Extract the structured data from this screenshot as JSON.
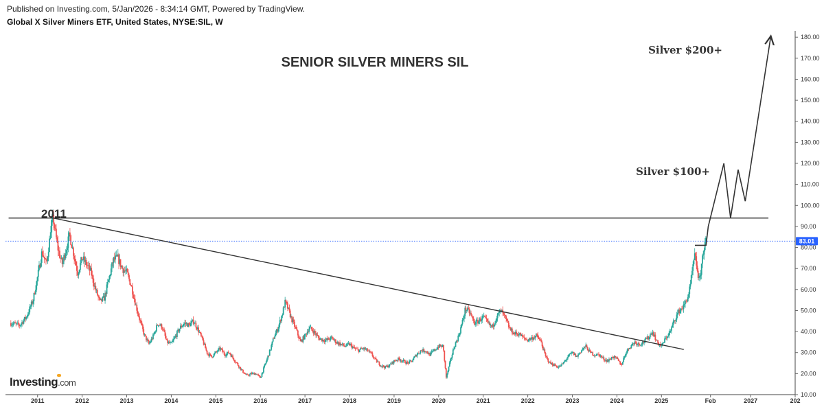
{
  "header": {
    "published": "Published on Investing.com, 5/Jan/2026 - 8:34:14 GMT, Powered by TradingView.",
    "instrument": "Global X Silver Miners ETF, United States, NYSE:SIL, W"
  },
  "logo": {
    "brand": "Investing",
    "suffix": ".com"
  },
  "chart_data": {
    "type": "line",
    "title": "SENIOR SILVER MINERS SIL",
    "style": "weekly candlestick",
    "x_ticks": [
      "2011",
      "2012",
      "2013",
      "2014",
      "2015",
      "2016",
      "2017",
      "2018",
      "2019",
      "2020",
      "2021",
      "2022",
      "2023",
      "2024",
      "2025",
      "Feb",
      "2027",
      "202"
    ],
    "y_ticks": [
      "10.00",
      "20.00",
      "30.00",
      "40.00",
      "50.00",
      "60.00",
      "70.00",
      "80.00",
      "90.00",
      "100.00",
      "110.00",
      "120.00",
      "130.00",
      "140.00",
      "150.00",
      "160.00",
      "170.00",
      "180.00"
    ],
    "ylim": [
      10,
      183
    ],
    "xlim": [
      2010.28,
      2028.0
    ],
    "last_price": "83.01",
    "colors": {
      "up": "#26a69a",
      "down": "#ef5350",
      "price_line": "#2962ff",
      "annotation": "#333333"
    },
    "series": [
      {
        "values": [
          [
            2010.4,
            44
          ],
          [
            2010.6,
            43
          ],
          [
            2010.75,
            47
          ],
          [
            2010.9,
            55
          ],
          [
            2011.0,
            66
          ],
          [
            2011.1,
            78
          ],
          [
            2011.2,
            72
          ],
          [
            2011.3,
            89
          ],
          [
            2011.35,
            94
          ],
          [
            2011.45,
            80
          ],
          [
            2011.55,
            72
          ],
          [
            2011.65,
            80
          ],
          [
            2011.72,
            86
          ],
          [
            2011.8,
            78
          ],
          [
            2011.9,
            68
          ],
          [
            2012.0,
            75
          ],
          [
            2012.1,
            72
          ],
          [
            2012.2,
            68
          ],
          [
            2012.3,
            60
          ],
          [
            2012.4,
            54
          ],
          [
            2012.5,
            56
          ],
          [
            2012.6,
            65
          ],
          [
            2012.7,
            74
          ],
          [
            2012.8,
            75
          ],
          [
            2012.9,
            70
          ],
          [
            2013.0,
            68
          ],
          [
            2013.1,
            62
          ],
          [
            2013.2,
            53
          ],
          [
            2013.3,
            45
          ],
          [
            2013.4,
            38
          ],
          [
            2013.5,
            34
          ],
          [
            2013.6,
            38
          ],
          [
            2013.7,
            44
          ],
          [
            2013.8,
            42
          ],
          [
            2013.9,
            35
          ],
          [
            2014.0,
            34
          ],
          [
            2014.1,
            38
          ],
          [
            2014.2,
            42
          ],
          [
            2014.3,
            44
          ],
          [
            2014.4,
            43
          ],
          [
            2014.5,
            45
          ],
          [
            2014.6,
            41
          ],
          [
            2014.7,
            36
          ],
          [
            2014.8,
            30
          ],
          [
            2014.9,
            28
          ],
          [
            2015.0,
            30
          ],
          [
            2015.1,
            32
          ],
          [
            2015.2,
            29
          ],
          [
            2015.3,
            30
          ],
          [
            2015.4,
            27
          ],
          [
            2015.5,
            24
          ],
          [
            2015.6,
            21
          ],
          [
            2015.7,
            19
          ],
          [
            2015.8,
            20
          ],
          [
            2015.9,
            20
          ],
          [
            2016.0,
            18
          ],
          [
            2016.1,
            24
          ],
          [
            2016.2,
            30
          ],
          [
            2016.3,
            37
          ],
          [
            2016.4,
            42
          ],
          [
            2016.5,
            49
          ],
          [
            2016.55,
            54
          ],
          [
            2016.6,
            52
          ],
          [
            2016.7,
            46
          ],
          [
            2016.8,
            41
          ],
          [
            2016.9,
            35
          ],
          [
            2017.0,
            38
          ],
          [
            2017.1,
            42
          ],
          [
            2017.2,
            40
          ],
          [
            2017.3,
            37
          ],
          [
            2017.4,
            36
          ],
          [
            2017.5,
            36
          ],
          [
            2017.6,
            37
          ],
          [
            2017.7,
            35
          ],
          [
            2017.8,
            34
          ],
          [
            2017.9,
            33
          ],
          [
            2018.0,
            34
          ],
          [
            2018.1,
            32
          ],
          [
            2018.2,
            31
          ],
          [
            2018.3,
            32
          ],
          [
            2018.4,
            31
          ],
          [
            2018.5,
            29
          ],
          [
            2018.6,
            26
          ],
          [
            2018.7,
            24
          ],
          [
            2018.8,
            23
          ],
          [
            2018.9,
            24
          ],
          [
            2019.0,
            26
          ],
          [
            2019.1,
            27
          ],
          [
            2019.2,
            26
          ],
          [
            2019.3,
            25
          ],
          [
            2019.4,
            26
          ],
          [
            2019.5,
            29
          ],
          [
            2019.6,
            31
          ],
          [
            2019.7,
            31
          ],
          [
            2019.8,
            29
          ],
          [
            2019.9,
            31
          ],
          [
            2020.0,
            33
          ],
          [
            2020.1,
            33
          ],
          [
            2020.17,
            18
          ],
          [
            2020.25,
            25
          ],
          [
            2020.35,
            33
          ],
          [
            2020.45,
            38
          ],
          [
            2020.55,
            46
          ],
          [
            2020.6,
            51
          ],
          [
            2020.7,
            49
          ],
          [
            2020.8,
            44
          ],
          [
            2020.9,
            45
          ],
          [
            2021.0,
            47
          ],
          [
            2021.1,
            44
          ],
          [
            2021.2,
            42
          ],
          [
            2021.3,
            47
          ],
          [
            2021.4,
            50
          ],
          [
            2021.5,
            46
          ],
          [
            2021.6,
            41
          ],
          [
            2021.7,
            39
          ],
          [
            2021.8,
            39
          ],
          [
            2021.9,
            37
          ],
          [
            2022.0,
            36
          ],
          [
            2022.1,
            37
          ],
          [
            2022.2,
            38
          ],
          [
            2022.3,
            35
          ],
          [
            2022.4,
            28
          ],
          [
            2022.5,
            25
          ],
          [
            2022.6,
            24
          ],
          [
            2022.7,
            23
          ],
          [
            2022.8,
            25
          ],
          [
            2022.9,
            28
          ],
          [
            2023.0,
            30
          ],
          [
            2023.1,
            28
          ],
          [
            2023.2,
            31
          ],
          [
            2023.3,
            33
          ],
          [
            2023.4,
            30
          ],
          [
            2023.5,
            29
          ],
          [
            2023.6,
            29
          ],
          [
            2023.7,
            27
          ],
          [
            2023.8,
            26
          ],
          [
            2023.9,
            28
          ],
          [
            2024.0,
            27
          ],
          [
            2024.1,
            24
          ],
          [
            2024.2,
            30
          ],
          [
            2024.3,
            33
          ],
          [
            2024.4,
            35
          ],
          [
            2024.5,
            34
          ],
          [
            2024.6,
            35
          ],
          [
            2024.7,
            37
          ],
          [
            2024.8,
            40
          ],
          [
            2024.9,
            35
          ],
          [
            2025.0,
            33
          ],
          [
            2025.1,
            37
          ],
          [
            2025.2,
            40
          ],
          [
            2025.3,
            46
          ],
          [
            2025.4,
            50
          ],
          [
            2025.5,
            52
          ],
          [
            2025.6,
            57
          ],
          [
            2025.65,
            62
          ],
          [
            2025.7,
            70
          ],
          [
            2025.75,
            76
          ],
          [
            2025.8,
            70
          ],
          [
            2025.85,
            63
          ],
          [
            2025.9,
            72
          ],
          [
            2025.95,
            80
          ],
          [
            2026.0,
            83.01
          ]
        ]
      }
    ],
    "annotations": [
      {
        "text": "2011"
      },
      {
        "text": "Silver $100+"
      },
      {
        "text": "Silver $200+"
      }
    ],
    "lines": [
      {
        "kind": "horizontal",
        "y": 94,
        "x_from": 2010.35,
        "x_to": 2027.4
      },
      {
        "kind": "trendline",
        "from": [
          2011.35,
          94
        ],
        "to": [
          2025.5,
          31.5
        ]
      },
      {
        "kind": "projection",
        "points": [
          [
            2025.75,
            81
          ],
          [
            2026.0,
            81
          ],
          [
            2026.05,
            90
          ],
          [
            2026.4,
            120
          ],
          [
            2026.55,
            94
          ],
          [
            2026.72,
            117
          ],
          [
            2026.88,
            102
          ],
          [
            2027.45,
            180
          ]
        ]
      }
    ]
  }
}
